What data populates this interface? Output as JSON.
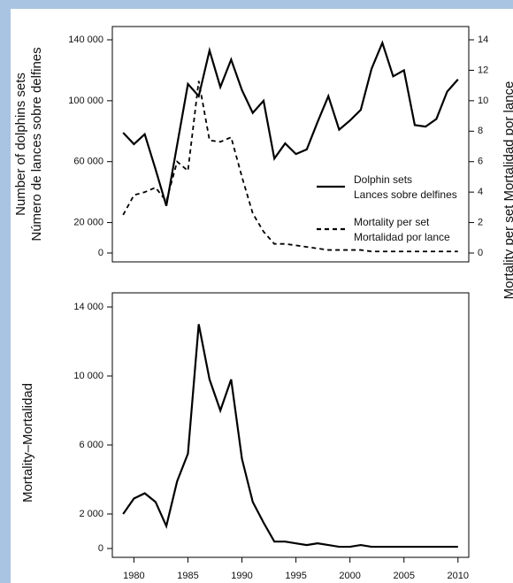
{
  "chart_data": [
    {
      "type": "line",
      "ylabel": [
        "Number of dolphins sets",
        "Número de lances sobre delfines"
      ],
      "y2label": "Mortality per set  Mortalidad por lance",
      "x": [
        1979,
        1980,
        1981,
        1982,
        1983,
        1984,
        1985,
        1986,
        1987,
        1988,
        1989,
        1990,
        1991,
        1992,
        1993,
        1994,
        1995,
        1996,
        1997,
        1998,
        1999,
        2000,
        2001,
        2002,
        2003,
        2004,
        2005,
        2006,
        2007,
        2008,
        2009,
        2010
      ],
      "xlim": [
        1978,
        2011
      ],
      "ylim": [
        0,
        140000
      ],
      "yticks": [
        0,
        {
          "value": 20000,
          "label": "20 000"
        },
        {
          "value": 60000,
          "label": "60 000"
        },
        {
          "value": 100000,
          "label": "100 000"
        },
        {
          "value": 140000,
          "label": "140 000"
        }
      ],
      "y2lim": [
        0,
        14
      ],
      "y2ticks": [
        0,
        2,
        4,
        6,
        8,
        10,
        12,
        14
      ],
      "legend": "right",
      "series": [
        {
          "name": [
            "Dolphin sets",
            "Lances sobre delfines"
          ],
          "color": "#000000",
          "dash": "solid",
          "values": [
            79000,
            71500,
            78000,
            55000,
            31000,
            71000,
            111000,
            103000,
            133000,
            109000,
            127000,
            107000,
            92000,
            100000,
            62000,
            72000,
            65000,
            68000,
            86000,
            103000,
            81000,
            87000,
            94000,
            121000,
            138000,
            116000,
            120000,
            84000,
            83000,
            88000,
            106000,
            114000
          ]
        },
        {
          "name": [
            "Mortality per set",
            "Mortalidad por lance"
          ],
          "color": "#000000",
          "dash": "dashed",
          "axis": "y2",
          "values": [
            2.5,
            3.8,
            4.0,
            4.3,
            3.4,
            6.0,
            5.4,
            11.3,
            7.4,
            7.3,
            7.6,
            5.0,
            2.6,
            1.4,
            0.6,
            0.6,
            0.5,
            0.4,
            0.3,
            0.2,
            0.2,
            0.2,
            0.2,
            0.1,
            0.1,
            0.1,
            0.1,
            0.1,
            0.1,
            0.1,
            0.1,
            0.1
          ]
        }
      ]
    },
    {
      "type": "line",
      "ylabel": "Mortality–Mortalidad",
      "x": [
        1979,
        1980,
        1981,
        1982,
        1983,
        1984,
        1985,
        1986,
        1987,
        1988,
        1989,
        1990,
        1991,
        1992,
        1993,
        1994,
        1995,
        1996,
        1997,
        1998,
        1999,
        2000,
        2001,
        2002,
        2003,
        2004,
        2005,
        2006,
        2007,
        2008,
        2009,
        2010
      ],
      "xlim": [
        1978,
        2011
      ],
      "xticks": [
        1980,
        1985,
        1990,
        1995,
        2000,
        2005,
        2010
      ],
      "ylim": [
        0,
        14000
      ],
      "yticks": [
        0,
        {
          "value": 2000,
          "label": "2 000"
        },
        {
          "value": 6000,
          "label": "6 000"
        },
        {
          "value": 10000,
          "label": "10 000"
        },
        {
          "value": 14000,
          "label": "14 000"
        }
      ],
      "series": [
        {
          "color": "#000000",
          "dash": "solid",
          "values": [
            2000,
            2900,
            3200,
            2700,
            1300,
            3900,
            5500,
            13000,
            9800,
            8000,
            9800,
            5200,
            2700,
            1500,
            400,
            400,
            300,
            200,
            300,
            200,
            100,
            100,
            200,
            100,
            100,
            100,
            100,
            100,
            100,
            100,
            100,
            100
          ]
        }
      ]
    }
  ]
}
